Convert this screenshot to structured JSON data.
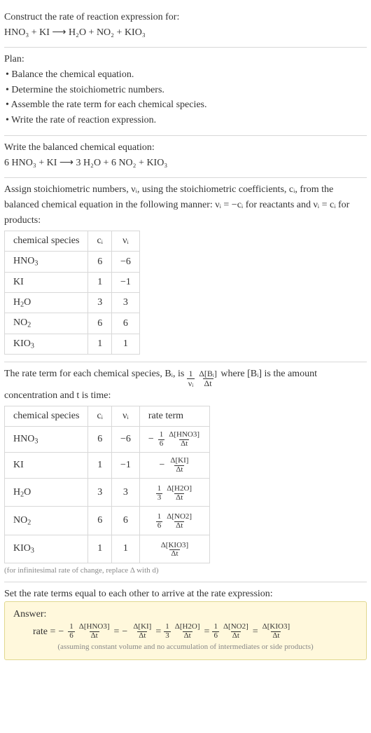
{
  "intro": {
    "construct": "Construct the rate of reaction expression for:",
    "equation": "HNO₃ + KI ⟶ H₂O + NO₂ + KIO₃"
  },
  "plan": {
    "title": "Plan:",
    "items": [
      "• Balance the chemical equation.",
      "• Determine the stoichiometric numbers.",
      "• Assemble the rate term for each chemical species.",
      "• Write the rate of reaction expression."
    ]
  },
  "balanced": {
    "title": "Write the balanced chemical equation:",
    "equation": "6 HNO₃ + KI ⟶ 3 H₂O + 6 NO₂ + KIO₃"
  },
  "stoich_intro_a": "Assign stoichiometric numbers, νᵢ, using the stoichiometric coefficients, cᵢ, from the balanced chemical equation in the following manner: νᵢ = −cᵢ for reactants and νᵢ = cᵢ for products:",
  "stoich_table": {
    "head": [
      "chemical species",
      "cᵢ",
      "νᵢ"
    ],
    "rows": [
      {
        "sp_html": "HNO<sub>3</sub>",
        "c": "6",
        "v": "−6"
      },
      {
        "sp_html": "KI",
        "c": "1",
        "v": "−1"
      },
      {
        "sp_html": "H<sub>2</sub>O",
        "c": "3",
        "v": "3"
      },
      {
        "sp_html": "NO<sub>2</sub>",
        "c": "6",
        "v": "6"
      },
      {
        "sp_html": "KIO<sub>3</sub>",
        "c": "1",
        "v": "1"
      }
    ]
  },
  "rate_intro_prefix": "The rate term for each chemical species, Bᵢ, is ",
  "rate_intro_mid": " where [Bᵢ] is the amount concentration and t is time:",
  "rate_intro_frac1_num": "1",
  "rate_intro_frac1_den": "νᵢ",
  "rate_intro_frac2_num": "Δ[Bᵢ]",
  "rate_intro_frac2_den": "Δt",
  "rate_table": {
    "head": [
      "chemical species",
      "cᵢ",
      "νᵢ",
      "rate term"
    ],
    "rows": [
      {
        "sp_html": "HNO<sub>3</sub>",
        "c": "6",
        "v": "−6",
        "coef_num": "1",
        "coef_den": "6",
        "num": "Δ[HNO3]",
        "den": "Δt",
        "neg": true
      },
      {
        "sp_html": "KI",
        "c": "1",
        "v": "−1",
        "coef_num": "",
        "coef_den": "",
        "num": "Δ[KI]",
        "den": "Δt",
        "neg": true
      },
      {
        "sp_html": "H<sub>2</sub>O",
        "c": "3",
        "v": "3",
        "coef_num": "1",
        "coef_den": "3",
        "num": "Δ[H2O]",
        "den": "Δt",
        "neg": false
      },
      {
        "sp_html": "NO<sub>2</sub>",
        "c": "6",
        "v": "6",
        "coef_num": "1",
        "coef_den": "6",
        "num": "Δ[NO2]",
        "den": "Δt",
        "neg": false
      },
      {
        "sp_html": "KIO<sub>3</sub>",
        "c": "1",
        "v": "1",
        "coef_num": "",
        "coef_den": "",
        "num": "Δ[KIO3]",
        "den": "Δt",
        "neg": false
      }
    ]
  },
  "rate_note": "(for infinitesimal rate of change, replace Δ with d)",
  "set_equal": "Set the rate terms equal to each other to arrive at the rate expression:",
  "answer": {
    "title": "Answer:",
    "prefix": "rate = ",
    "terms": [
      {
        "neg": true,
        "coef_num": "1",
        "coef_den": "6",
        "num": "Δ[HNO3]",
        "den": "Δt"
      },
      {
        "neg": true,
        "coef_num": "",
        "coef_den": "",
        "num": "Δ[KI]",
        "den": "Δt"
      },
      {
        "neg": false,
        "coef_num": "1",
        "coef_den": "3",
        "num": "Δ[H2O]",
        "den": "Δt"
      },
      {
        "neg": false,
        "coef_num": "1",
        "coef_den": "6",
        "num": "Δ[NO2]",
        "den": "Δt"
      },
      {
        "neg": false,
        "coef_num": "",
        "coef_den": "",
        "num": "Δ[KIO3]",
        "den": "Δt"
      }
    ],
    "note": "(assuming constant volume and no accumulation of intermediates or side products)"
  },
  "colors": {
    "text": "#333333",
    "border": "#d8d8d8",
    "note": "#888888",
    "answer_bg": "#fff8dc",
    "answer_border": "#e0d890"
  }
}
